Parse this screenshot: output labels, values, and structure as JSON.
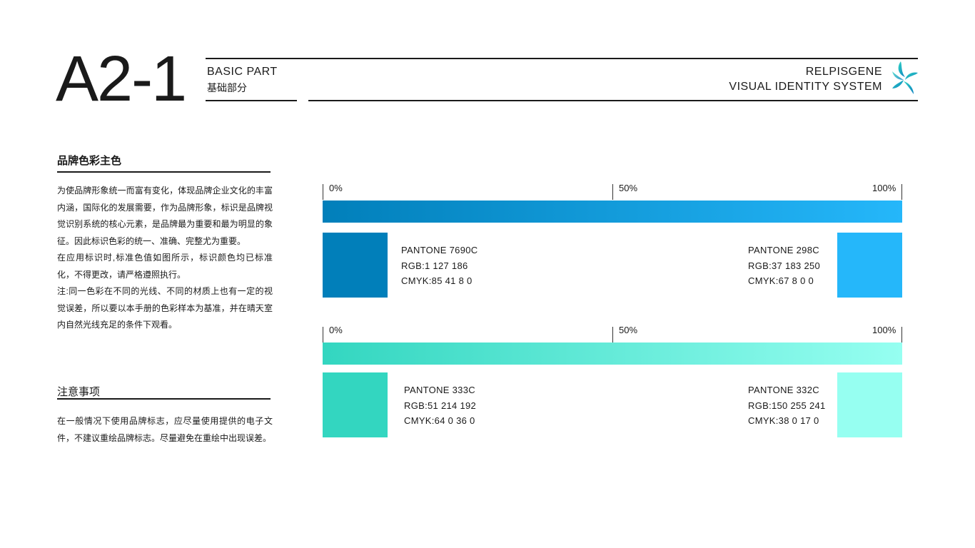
{
  "header": {
    "page_code": "A2-1",
    "section_en": "BASIC PART",
    "section_cn": "基础部分",
    "brand_name": "RELPISGENE",
    "brand_subtitle": "VISUAL IDENTITY SYSTEM",
    "logo_icon": "pinwheel-logo-icon"
  },
  "left": {
    "section1_title": "品牌色彩主色",
    "section1_paragraphs": [
      "为使品牌形象统一而富有变化，体现品牌企业文化的丰富内涵，国际化的发展需要，作为品牌形象，标识是品牌视觉识别系统的核心元素，是品牌最为重要和最为明显的象征。因此标识色彩的统一、准确、完整尤为重要。",
      "在应用标识时,标准色值如图所示，标识颜色均已标准化，不得更改，请严格遵照执行。",
      "注:同一色彩在不同的光线、不同的材质上也有一定的视觉误差，所以要以本手册的色彩样本为基准，并在晴天室内自然光线充足的条件下观看。"
    ],
    "section2_title": "注意事项",
    "section2_paragraph": "在一般情况下使用品牌标志，应尽量使用提供的电子文件，不建议重绘品牌标志。尽量避免在重绘中出现误差。"
  },
  "scales": [
    {
      "ticks": [
        "0%",
        "50%",
        "100%"
      ],
      "gradient_from": "#017fba",
      "gradient_to": "#25b7fa",
      "left_swatch": {
        "color": "#017fba",
        "pantone": "PANTONE 7690C",
        "rgb": "RGB:1 127 186",
        "cmyk": "CMYK:85 41 8 0"
      },
      "right_swatch": {
        "color": "#25b7fa",
        "pantone": "PANTONE 298C",
        "rgb": "RGB:37 183 250",
        "cmyk": "CMYK:67 8 0 0"
      }
    },
    {
      "ticks": [
        "0%",
        "50%",
        "100%"
      ],
      "gradient_from": "#33d6c0",
      "gradient_to": "#96fff1",
      "left_swatch": {
        "color": "#33d6c0",
        "pantone": "PANTONE 333C",
        "rgb": "RGB:51 214 192",
        "cmyk": "CMYK:64 0 36 0"
      },
      "right_swatch": {
        "color": "#96fff1",
        "pantone": "PANTONE 332C",
        "rgb": "RGB:150 255 241",
        "cmyk": "CMYK:38 0 17 0"
      }
    }
  ]
}
